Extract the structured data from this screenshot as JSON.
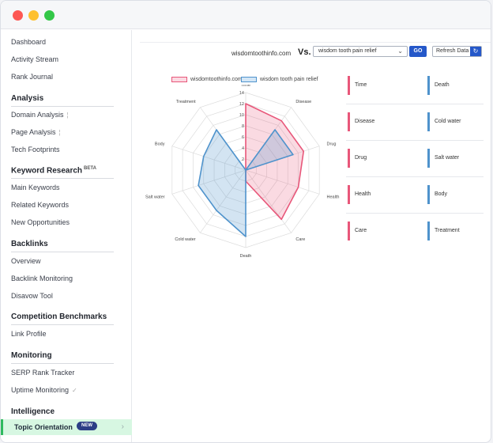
{
  "window": {
    "controls": [
      "close",
      "minimize",
      "maximize"
    ]
  },
  "sidebar": {
    "items_top": [
      "Dashboard",
      "Activity Stream",
      "Rank Journal"
    ],
    "analysis": {
      "title": "Analysis",
      "items": [
        "Domain Analysis",
        "Page Analysis",
        "Tech Footprints"
      ]
    },
    "keyword_research": {
      "title": "Keyword Research",
      "badge": "BETA",
      "items": [
        "Main Keywords",
        "Related Keywords",
        "New Opportunities"
      ]
    },
    "backlinks": {
      "title": "Backlinks",
      "items": [
        "Overview",
        "Backlink Monitoring",
        "Disavow Tool"
      ]
    },
    "competition": {
      "title": "Competition Benchmarks",
      "items": [
        "Link Profile"
      ]
    },
    "monitoring": {
      "title": "Monitoring",
      "items": [
        "SERP Rank Tracker",
        "Uptime Monitoring"
      ]
    },
    "intelligence": {
      "title": "Intelligence",
      "active_item": "Topic Orientation",
      "active_badge": "NEW"
    }
  },
  "toolbar": {
    "domain": "wisdomtoothinfo.com",
    "vs": "Vs.",
    "compare_value": "wisdom tooth pain relief",
    "go_label": "GO",
    "refresh_label": "Refresh Data"
  },
  "colors": {
    "series1": "#e8577a",
    "series2": "#4f93cc",
    "accent": "#2558c9",
    "active_bg": "#d7f7e2"
  },
  "chart_data": {
    "type": "radar",
    "categories": [
      "Time",
      "Disease",
      "Drug",
      "Health",
      "Care",
      "Death",
      "Cold water",
      "Salt water",
      "Body",
      "Treatment"
    ],
    "ticks": [
      2,
      4,
      6,
      8,
      10,
      12,
      14
    ],
    "range": [
      0,
      14
    ],
    "series": [
      {
        "name": "wisdomtoothinfo.com",
        "values": [
          12,
          11,
          11,
          10,
          11,
          2,
          0,
          0,
          0,
          0
        ]
      },
      {
        "name": "wisdom tooth pain relief",
        "values": [
          0,
          9,
          9,
          0,
          0,
          12,
          9,
          9,
          8,
          9
        ]
      }
    ]
  },
  "topics": {
    "left": [
      "Time",
      "Disease",
      "Drug",
      "Health",
      "Care"
    ],
    "right": [
      "Death",
      "Cold water",
      "Salt water",
      "Body",
      "Treatment"
    ]
  }
}
